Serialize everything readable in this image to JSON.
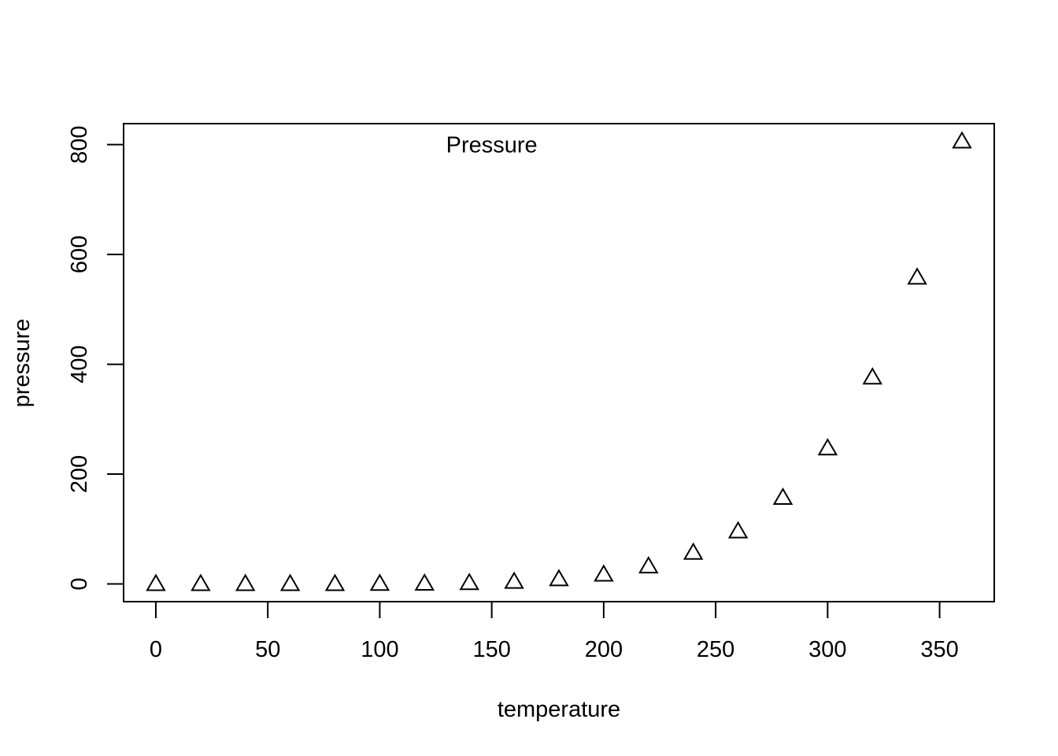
{
  "chart_data": {
    "type": "scatter",
    "xlabel": "temperature",
    "ylabel": "pressure",
    "annotation": {
      "text": "Pressure",
      "x": 150,
      "y": 800
    },
    "marker": "open-triangle",
    "marker_color": "#000000",
    "grid": false,
    "xlim": [
      -14.4,
      374.4
    ],
    "ylim": [
      -32.24,
      838.2
    ],
    "x_ticks": [
      0,
      50,
      100,
      150,
      200,
      250,
      300,
      350
    ],
    "y_ticks": [
      0,
      200,
      400,
      600,
      800
    ],
    "x": [
      0,
      20,
      40,
      60,
      80,
      100,
      120,
      140,
      160,
      180,
      200,
      220,
      240,
      260,
      280,
      300,
      320,
      340,
      360
    ],
    "y": [
      0.0002,
      0.0012,
      0.006,
      0.03,
      0.09,
      0.27,
      0.75,
      1.85,
      4.2,
      8.8,
      17.3,
      32.1,
      57,
      96,
      157,
      247,
      376,
      558,
      806
    ]
  }
}
